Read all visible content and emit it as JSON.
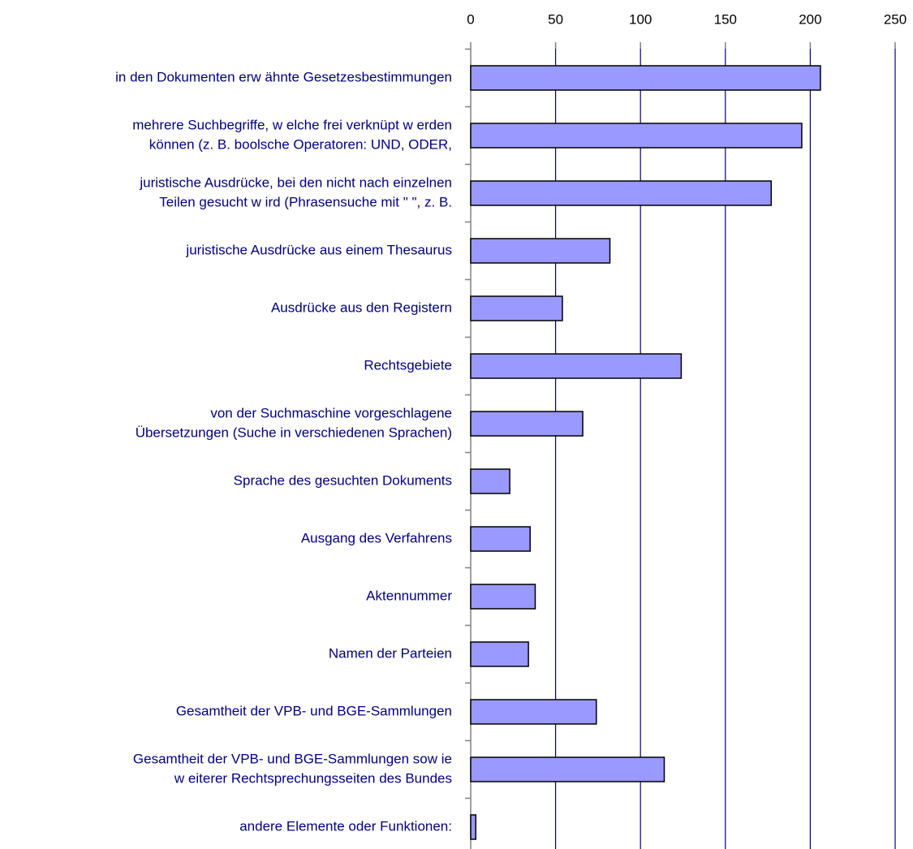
{
  "chart_data": {
    "type": "bar",
    "orientation": "horizontal",
    "categories": [
      [
        "in den Dokumenten erw ähnte Gesetzesbestimmungen"
      ],
      [
        "mehrere Suchbegriffe, w elche frei verknüpt w erden",
        "können (z. B. boolsche Operatoren: UND, ODER,"
      ],
      [
        "juristische Ausdrücke, bei den nicht nach einzelnen",
        "Teilen gesucht w ird (Phrasensuche mit \"  \", z. B."
      ],
      [
        "juristische Ausdrücke aus einem Thesaurus"
      ],
      [
        "Ausdrücke aus den Registern"
      ],
      [
        "Rechtsgebiete"
      ],
      [
        "von der Suchmaschine vorgeschlagene",
        "Übersetzungen (Suche in verschiedenen Sprachen)"
      ],
      [
        "Sprache des gesuchten Dokuments"
      ],
      [
        "Ausgang des Verfahrens"
      ],
      [
        "Aktennummer"
      ],
      [
        "Namen der Parteien"
      ],
      [
        "Gesamtheit der VPB- und BGE-Sammlungen"
      ],
      [
        "Gesamtheit der VPB- und BGE-Sammlungen sow ie",
        "w eiterer Rechtsprechungsseiten des Bundes"
      ],
      [
        "andere Elemente oder Funktionen:"
      ]
    ],
    "values": [
      206,
      195,
      177,
      82,
      54,
      124,
      66,
      23,
      35,
      38,
      34,
      74,
      114,
      3
    ],
    "color": "#9999ff",
    "xlim": [
      0,
      250
    ],
    "xticks": [
      0,
      50,
      100,
      150,
      200,
      250
    ],
    "grid": true
  }
}
